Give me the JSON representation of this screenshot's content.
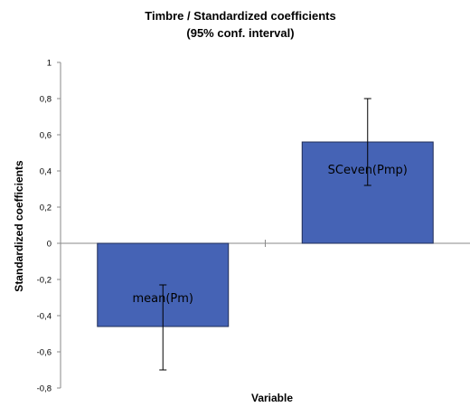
{
  "chart_data": {
    "type": "bar",
    "title": "Timbre / Standardized coefficients",
    "subtitle": "(95% conf. interval)",
    "xlabel": "Variable",
    "ylabel": "Standardized coefficients",
    "ylim": [
      -0.8,
      1
    ],
    "yticks": [
      "-0,8",
      "-0,6",
      "-0,4",
      "-0,2",
      "0",
      "0,2",
      "0,4",
      "0,6",
      "0,8",
      "1"
    ],
    "yticks_values": [
      -0.8,
      -0.6,
      -0.4,
      -0.2,
      0,
      0.2,
      0.4,
      0.6,
      0.8,
      1
    ],
    "categories": [
      "mean(Pm)",
      "SCeven(Pmp)"
    ],
    "values": [
      -0.46,
      0.56
    ],
    "error_bars": [
      {
        "low": -0.7,
        "high": -0.23
      },
      {
        "low": 0.32,
        "high": 0.8
      }
    ],
    "bar_color": "#4563b5",
    "bar_edge_color": "#1f2d57",
    "grid": false
  }
}
